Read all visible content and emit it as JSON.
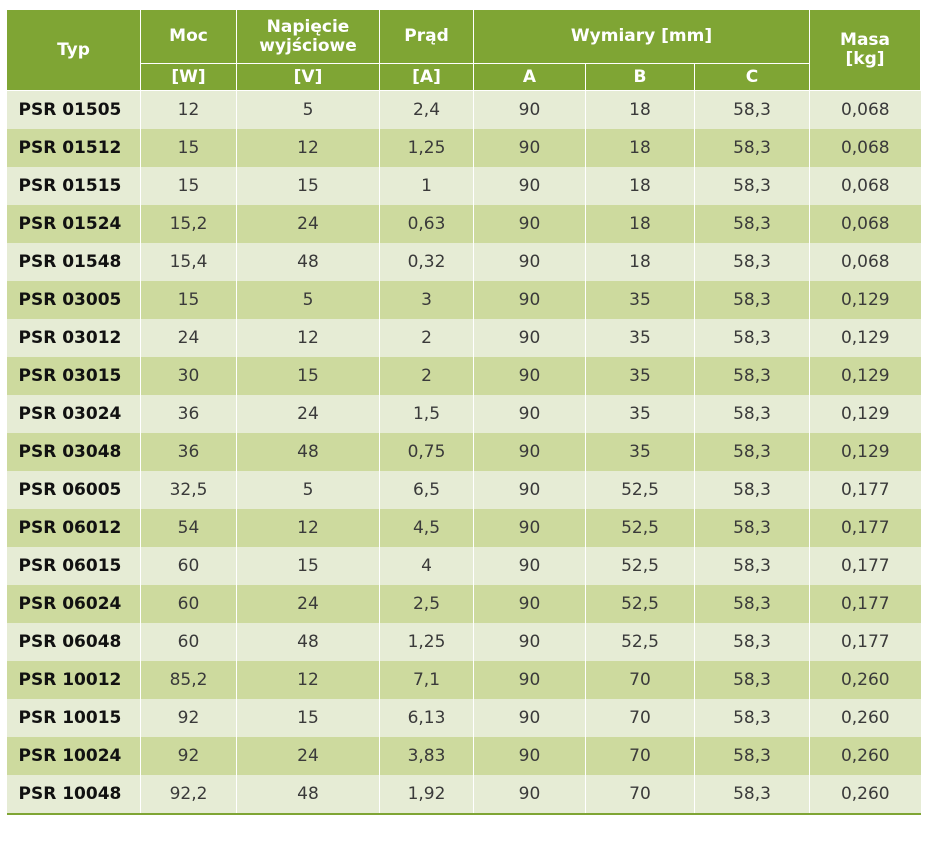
{
  "header": {
    "typ": "Typ",
    "moc": "Moc",
    "moc_unit": "[W]",
    "napiecie": "Napięcie wyjściowe",
    "napiecie_unit": "[V]",
    "prad": "Prąd",
    "prad_unit": "[A]",
    "wymiary": "Wymiary [mm]",
    "a": "A",
    "b": "B",
    "c": "C",
    "masa": "Masa",
    "masa_unit": "[kg]"
  },
  "rows": [
    [
      "PSR 01505",
      "12",
      "5",
      "2,4",
      "90",
      "18",
      "58,3",
      "0,068"
    ],
    [
      "PSR 01512",
      "15",
      "12",
      "1,25",
      "90",
      "18",
      "58,3",
      "0,068"
    ],
    [
      "PSR 01515",
      "15",
      "15",
      "1",
      "90",
      "18",
      "58,3",
      "0,068"
    ],
    [
      "PSR 01524",
      "15,2",
      "24",
      "0,63",
      "90",
      "18",
      "58,3",
      "0,068"
    ],
    [
      "PSR 01548",
      "15,4",
      "48",
      "0,32",
      "90",
      "18",
      "58,3",
      "0,068"
    ],
    [
      "PSR 03005",
      "15",
      "5",
      "3",
      "90",
      "35",
      "58,3",
      "0,129"
    ],
    [
      "PSR 03012",
      "24",
      "12",
      "2",
      "90",
      "35",
      "58,3",
      "0,129"
    ],
    [
      "PSR 03015",
      "30",
      "15",
      "2",
      "90",
      "35",
      "58,3",
      "0,129"
    ],
    [
      "PSR 03024",
      "36",
      "24",
      "1,5",
      "90",
      "35",
      "58,3",
      "0,129"
    ],
    [
      "PSR 03048",
      "36",
      "48",
      "0,75",
      "90",
      "35",
      "58,3",
      "0,129"
    ],
    [
      "PSR 06005",
      "32,5",
      "5",
      "6,5",
      "90",
      "52,5",
      "58,3",
      "0,177"
    ],
    [
      "PSR 06012",
      "54",
      "12",
      "4,5",
      "90",
      "52,5",
      "58,3",
      "0,177"
    ],
    [
      "PSR 06015",
      "60",
      "15",
      "4",
      "90",
      "52,5",
      "58,3",
      "0,177"
    ],
    [
      "PSR 06024",
      "60",
      "24",
      "2,5",
      "90",
      "52,5",
      "58,3",
      "0,177"
    ],
    [
      "PSR 06048",
      "60",
      "48",
      "1,25",
      "90",
      "52,5",
      "58,3",
      "0,177"
    ],
    [
      "PSR 10012",
      "85,2",
      "12",
      "7,1",
      "90",
      "70",
      "58,3",
      "0,260"
    ],
    [
      "PSR 10015",
      "92",
      "15",
      "6,13",
      "90",
      "70",
      "58,3",
      "0,260"
    ],
    [
      "PSR 10024",
      "92",
      "24",
      "3,83",
      "90",
      "70",
      "58,3",
      "0,260"
    ],
    [
      "PSR 10048",
      "92,2",
      "48",
      "1,92",
      "90",
      "70",
      "58,3",
      "0,260"
    ]
  ],
  "colors": {
    "header_bg": "#7fa534",
    "row_light": "#e6ecd5",
    "row_dark": "#cdda9e"
  }
}
